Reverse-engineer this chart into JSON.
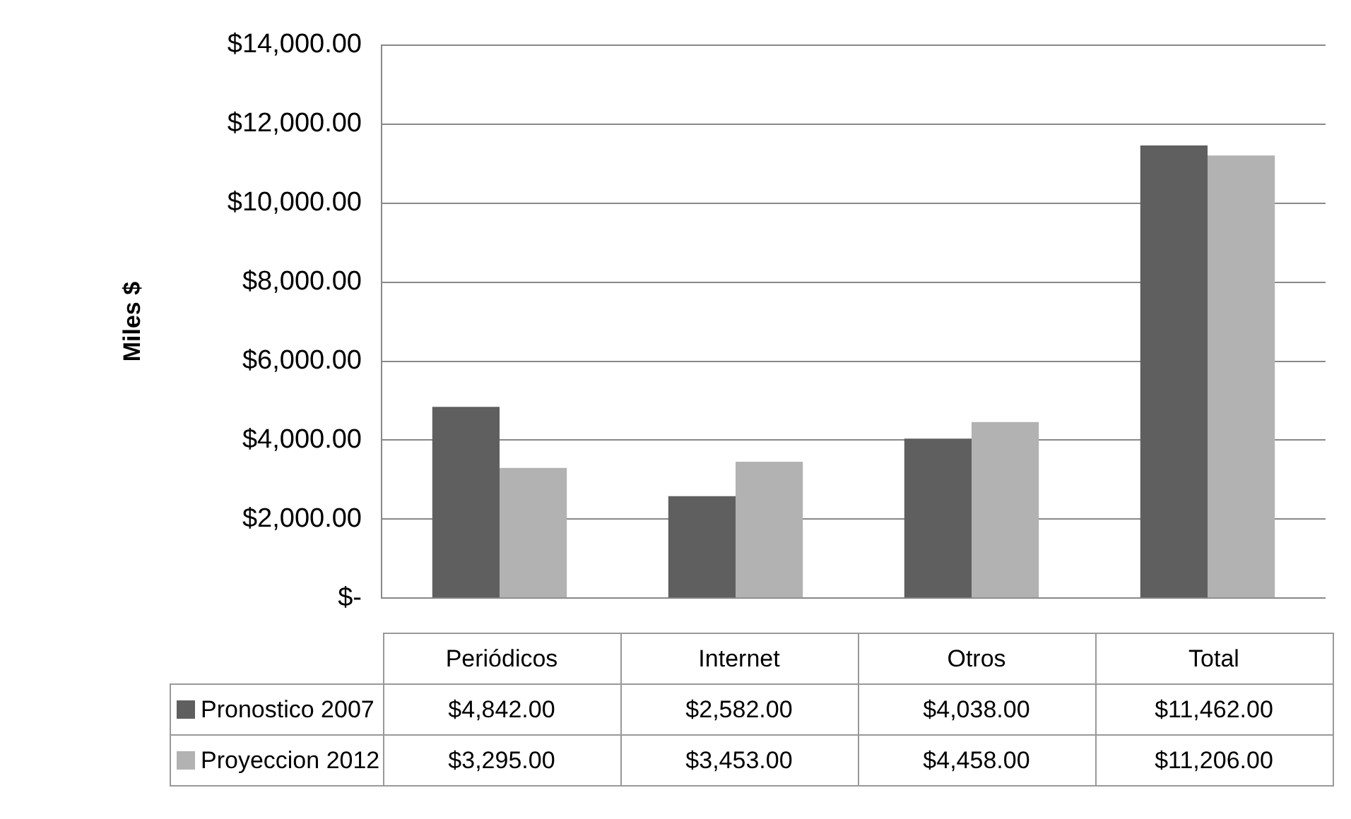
{
  "chart_data": {
    "type": "bar",
    "ylabel": "Miles $",
    "categories": [
      "Periódicos",
      "Internet",
      "Otros",
      "Total"
    ],
    "series": [
      {
        "name": "Pronostico 2007",
        "color": "#5f5f5f",
        "values": [
          4842,
          2582,
          4038,
          11462
        ],
        "value_labels": [
          "$4,842.00",
          "$2,582.00",
          "$4,038.00",
          "$11,462.00"
        ]
      },
      {
        "name": "Proyeccion 2012",
        "color": "#b2b2b2",
        "values": [
          3295,
          3453,
          4458,
          11206
        ],
        "value_labels": [
          "$3,295.00",
          "$3,453.00",
          "$4,458.00",
          "$11,206.00"
        ]
      }
    ],
    "ylim": [
      0,
      14000
    ],
    "yticks": [
      {
        "value": 0,
        "label": "$-"
      },
      {
        "value": 2000,
        "label": "$2,000.00"
      },
      {
        "value": 4000,
        "label": "$4,000.00"
      },
      {
        "value": 6000,
        "label": "$6,000.00"
      },
      {
        "value": 8000,
        "label": "$8,000.00"
      },
      {
        "value": 10000,
        "label": "$10,000.00"
      },
      {
        "value": 12000,
        "label": "$12,000.00"
      },
      {
        "value": 14000,
        "label": "$14,000.00"
      }
    ],
    "grid": "y",
    "legend": "bottom"
  }
}
